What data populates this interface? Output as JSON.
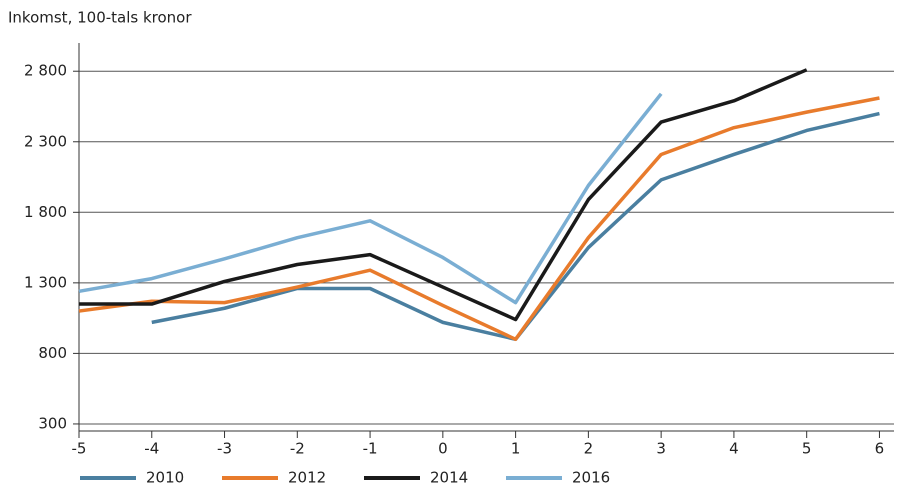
{
  "chart_data": {
    "type": "line",
    "y_label": "Inkomst, 100-tals kronor",
    "x": [
      -5,
      -4,
      -3,
      -2,
      -1,
      0,
      1,
      2,
      3,
      4,
      5,
      6
    ],
    "xlim": [
      -5,
      6.2
    ],
    "xticks": [
      -5,
      -4,
      -3,
      -2,
      -1,
      0,
      1,
      2,
      3,
      4,
      5,
      6
    ],
    "ylim": [
      250,
      3000
    ],
    "yticks": [
      {
        "value": 300,
        "label": "300"
      },
      {
        "value": 800,
        "label": "800"
      },
      {
        "value": 1300,
        "label": "1 300"
      },
      {
        "value": 1800,
        "label": "1 800"
      },
      {
        "value": 2300,
        "label": "2 300"
      },
      {
        "value": 2800,
        "label": "2 800"
      }
    ],
    "grid": true,
    "legend": "bottom",
    "series": [
      {
        "name": "2010",
        "color": "#4a7fa0",
        "values": [
          null,
          1020,
          1120,
          1260,
          1260,
          1020,
          900,
          1550,
          2030,
          2210,
          2380,
          2500
        ]
      },
      {
        "name": "2012",
        "color": "#e87b2c",
        "values": [
          1100,
          1170,
          1160,
          1270,
          1390,
          1140,
          900,
          1620,
          2210,
          2400,
          2510,
          2610
        ]
      },
      {
        "name": "2014",
        "color": "#1a1a1a",
        "values": [
          1150,
          1150,
          1310,
          1430,
          1500,
          1270,
          1040,
          1890,
          2440,
          2590,
          2810,
          null
        ]
      },
      {
        "name": "2016",
        "color": "#7aaed3",
        "values": [
          1240,
          1330,
          1470,
          1620,
          1740,
          1480,
          1160,
          1990,
          2640,
          null,
          null,
          null
        ]
      }
    ]
  }
}
